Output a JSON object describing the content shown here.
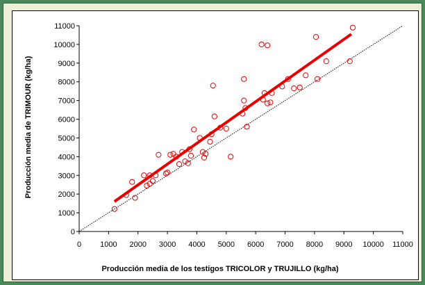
{
  "chart_data": {
    "type": "scatter",
    "xlabel": "Producción media de los testigos TRICOLOR y TRUJILLO (kg/ha)",
    "ylabel": "Producción media de TRIMOUR (kg/ha)",
    "xlim": [
      0,
      11000
    ],
    "ylim": [
      0,
      11000
    ],
    "xticks": [
      "0",
      "1000",
      "2000",
      "3000",
      "4000",
      "5000",
      "6000",
      "7000",
      "8000",
      "9000",
      "10000",
      "11000"
    ],
    "yticks": [
      "0",
      "1000",
      "2000",
      "3000",
      "4000",
      "5000",
      "6000",
      "7000",
      "8000",
      "9000",
      "10000",
      "11000"
    ],
    "grid": false,
    "legend": "none",
    "colors": {
      "points": "#e60000",
      "fit": "#e60000",
      "reference": "#000000"
    },
    "series": [
      {
        "values": [
          [
            1200,
            1200
          ],
          [
            1600,
            1950
          ],
          [
            1800,
            2650
          ],
          [
            1900,
            1800
          ],
          [
            2200,
            3000
          ],
          [
            2300,
            2450
          ],
          [
            2400,
            2550
          ],
          [
            2400,
            3000
          ],
          [
            2500,
            2700
          ],
          [
            2600,
            3000
          ],
          [
            2700,
            4100
          ],
          [
            2950,
            3100
          ],
          [
            3000,
            3150
          ],
          [
            3100,
            4100
          ],
          [
            3200,
            4150
          ],
          [
            3300,
            4000
          ],
          [
            3400,
            3600
          ],
          [
            3500,
            4250
          ],
          [
            3600,
            3750
          ],
          [
            3700,
            3650
          ],
          [
            3750,
            4400
          ],
          [
            3800,
            4050
          ],
          [
            3900,
            5450
          ],
          [
            4100,
            5000
          ],
          [
            4200,
            4250
          ],
          [
            4250,
            3950
          ],
          [
            4300,
            4150
          ],
          [
            4450,
            4800
          ],
          [
            4500,
            5200
          ],
          [
            4550,
            7800
          ],
          [
            4600,
            6150
          ],
          [
            4800,
            5550
          ],
          [
            5000,
            5500
          ],
          [
            5150,
            4000
          ],
          [
            5550,
            6300
          ],
          [
            5600,
            7000
          ],
          [
            5600,
            8150
          ],
          [
            5650,
            6600
          ],
          [
            5700,
            5600
          ],
          [
            6200,
            10000
          ],
          [
            6250,
            7050
          ],
          [
            6300,
            7400
          ],
          [
            6400,
            9950
          ],
          [
            6400,
            6850
          ],
          [
            6500,
            6900
          ],
          [
            6550,
            7400
          ],
          [
            7100,
            8150
          ],
          [
            7300,
            7650
          ],
          [
            7500,
            7700
          ],
          [
            7700,
            8350
          ],
          [
            8050,
            10400
          ],
          [
            8100,
            8150
          ],
          [
            8400,
            9100
          ],
          [
            9200,
            9100
          ],
          [
            9300,
            10900
          ],
          [
            6900,
            7750
          ]
        ]
      }
    ],
    "fit_line": [
      [
        1200,
        1600
      ],
      [
        9250,
        10550
      ]
    ],
    "reference_line": [
      [
        0,
        0
      ],
      [
        11000,
        11000
      ]
    ]
  }
}
